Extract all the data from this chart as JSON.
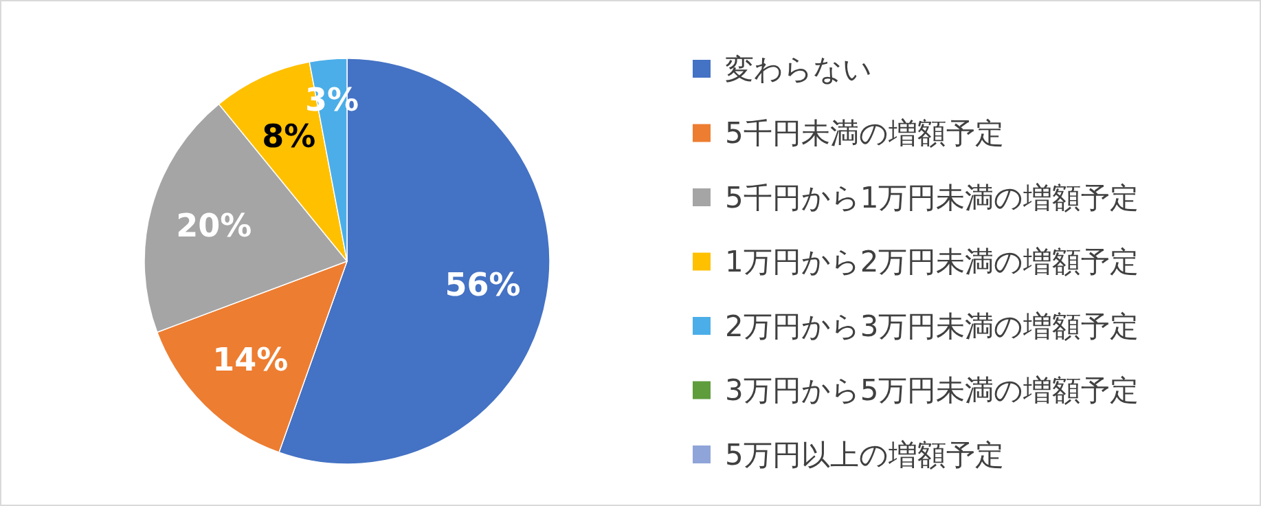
{
  "chart_data": {
    "type": "pie",
    "categories": [
      "変わらない",
      "5千円未満の増額予定",
      "5千円から1万円未満の増額予定",
      "1万円から2万円未満の増額予定",
      "2万円から3万円未満の増額予定",
      "3万円から5万円未満の増額予定",
      "5万円以上の増額予定"
    ],
    "values": [
      56,
      14,
      20,
      8,
      3,
      0,
      0
    ],
    "colors": [
      "#4472c4",
      "#ed7d31",
      "#a5a5a5",
      "#ffc000",
      "#4baee8",
      "#5e9c3c",
      "#8fa4d8"
    ],
    "value_labels": [
      "56%",
      "14%",
      "20%",
      "8%",
      "3%",
      null,
      null
    ],
    "legend": "right"
  }
}
